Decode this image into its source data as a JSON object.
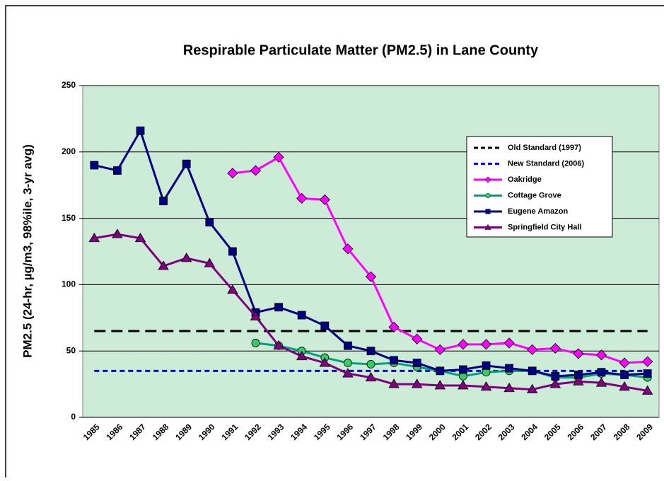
{
  "chart_data": {
    "type": "line",
    "title": "Respirable Particulate Matter (PM2.5) in Lane County",
    "y_label": "PM2.5 (24-hr, µg/m3, 98%ile, 3-yr avg)",
    "categories": [
      "1985",
      "1986",
      "1987",
      "1988",
      "1989",
      "1990",
      "1991",
      "1992",
      "1993",
      "1994",
      "1995",
      "1996",
      "1997",
      "1998",
      "1999",
      "2000",
      "2001",
      "2002",
      "2003",
      "2004",
      "2005",
      "2006",
      "2007",
      "2008",
      "2009"
    ],
    "ylim": [
      0,
      250
    ],
    "yticks": [
      0,
      50,
      100,
      150,
      200,
      250
    ],
    "grid": true,
    "plot_background": "#ccecd8",
    "legend": "right",
    "series": [
      {
        "name": "Old Standard (1997)",
        "color": "#000000",
        "dash": true,
        "marker": "none",
        "values": [
          65,
          65,
          65,
          65,
          65,
          65,
          65,
          65,
          65,
          65,
          65,
          65,
          65,
          65,
          65,
          65,
          65,
          65,
          65,
          65,
          65,
          65,
          65,
          65,
          65
        ]
      },
      {
        "name": "New Standard (2006)",
        "color": "#0000ff",
        "dash": true,
        "marker": "none",
        "values": [
          35,
          35,
          35,
          35,
          35,
          35,
          35,
          35,
          35,
          35,
          35,
          35,
          35,
          35,
          35,
          35,
          35,
          35,
          35,
          35,
          35,
          35,
          35,
          35,
          35
        ]
      },
      {
        "name": "Oakridge",
        "color": "#ff00ff",
        "dash": false,
        "marker": "diamond",
        "values": [
          null,
          null,
          null,
          null,
          null,
          null,
          184,
          186,
          196,
          165,
          164,
          127,
          106,
          68,
          59,
          51,
          55,
          55,
          56,
          51,
          52,
          48,
          47,
          41,
          42
        ]
      },
      {
        "name": "Cottage Grove",
        "color": "#00a080",
        "dash": false,
        "marker": "circle",
        "values": [
          null,
          null,
          null,
          null,
          null,
          null,
          null,
          56,
          54,
          50,
          45,
          41,
          40,
          41,
          38,
          35,
          31,
          34,
          35,
          35,
          30,
          30,
          33,
          32,
          30
        ]
      },
      {
        "name": "Eugene Amazon",
        "color": "#000080",
        "dash": false,
        "marker": "square",
        "values": [
          190,
          186,
          216,
          163,
          191,
          147,
          125,
          79,
          83,
          77,
          69,
          54,
          50,
          43,
          41,
          35,
          36,
          39,
          37,
          35,
          31,
          32,
          34,
          32,
          33
        ]
      },
      {
        "name": "Springfield City Hall",
        "color": "#800080",
        "dash": false,
        "marker": "triangle",
        "values": [
          135,
          138,
          135,
          114,
          120,
          116,
          96,
          76,
          54,
          46,
          41,
          33,
          30,
          25,
          25,
          24,
          24,
          23,
          22,
          21,
          25,
          27,
          26,
          23,
          20
        ]
      }
    ]
  }
}
